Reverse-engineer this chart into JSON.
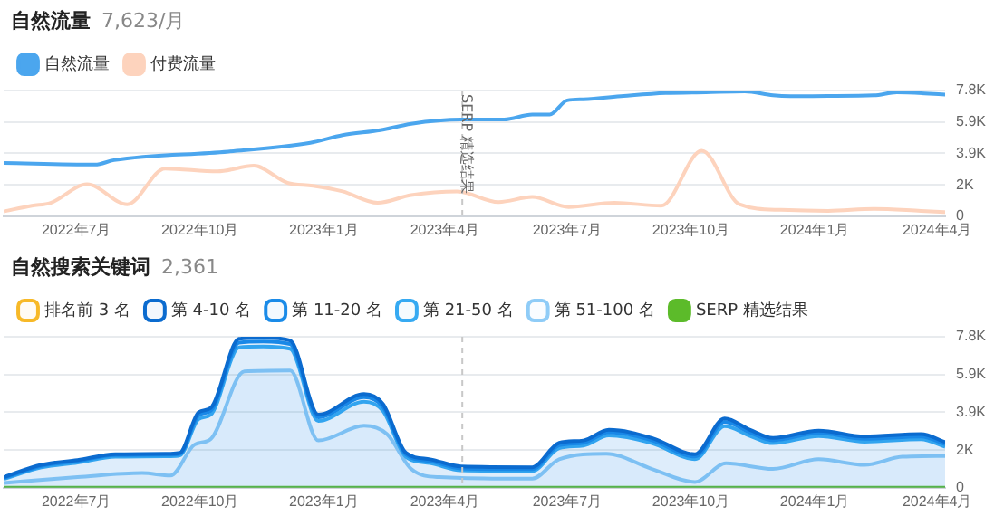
{
  "chart_data": [
    {
      "type": "line",
      "title": "自然流量",
      "subtitle": "7,623/月",
      "legend": "top left",
      "grid": "y",
      "marker": "none",
      "xlim": [
        "2022-05-08",
        "2024-04-07"
      ],
      "xticks": [
        {
          "value": "2022-07-01",
          "label": "2022年7月"
        },
        {
          "value": "2022-10-01",
          "label": "2022年10月"
        },
        {
          "value": "2023-01-01",
          "label": "2023年1月"
        },
        {
          "value": "2023-04-01",
          "label": "2023年4月"
        },
        {
          "value": "2023-07-01",
          "label": "2023年7月"
        },
        {
          "value": "2023-10-01",
          "label": "2023年10月"
        },
        {
          "value": "2024-01-01",
          "label": "2024年1月"
        },
        {
          "value": "2024-04-01",
          "label": "2024年4月"
        }
      ],
      "ylim": [
        0,
        7800
      ],
      "yticks": [
        0,
        {
          "value": 1950,
          "label": "2K"
        },
        {
          "value": 3900,
          "label": "3.9K"
        },
        {
          "value": 5850,
          "label": "5.9K"
        },
        {
          "value": 7800,
          "label": "7.8K"
        }
      ],
      "ref_lines": [
        {
          "axis": "x",
          "value": "2023-04-14",
          "label": "SERP 精选结果",
          "color": "#c8c8c8",
          "line_style": "dashed"
        }
      ],
      "series": [
        {
          "name": "自然流量",
          "color": "#4ba6ee",
          "x": [
            "2022-05-08",
            "2022-07-15",
            "2022-07-29",
            "2022-10-22",
            "2022-12-22",
            "2023-01-15",
            "2023-02-12",
            "2023-03-07",
            "2023-04-13",
            "2023-05-15",
            "2023-06-05",
            "2023-06-18",
            "2023-07-01",
            "2023-07-13",
            "2023-08-12",
            "2023-09-12",
            "2023-10-12",
            "2023-11-10",
            "2023-12-01",
            "2023-12-14",
            "2024-01-11",
            "2024-02-14",
            "2024-03-02",
            "2024-04-07"
          ],
          "values": [
            3300,
            3200,
            3480,
            4010,
            4560,
            5030,
            5340,
            5740,
            6000,
            6000,
            6310,
            6310,
            7190,
            7250,
            7460,
            7640,
            7690,
            7740,
            7500,
            7450,
            7460,
            7500,
            7690,
            7550
          ]
        },
        {
          "name": "付费流量",
          "color": "#fdd3bd",
          "x": [
            "2022-05-08",
            "2022-05-29",
            "2022-06-12",
            "2022-07-09",
            "2022-08-08",
            "2022-09-05",
            "2022-10-14",
            "2022-11-10",
            "2022-12-05",
            "2022-12-24",
            "2023-01-15",
            "2023-02-10",
            "2023-03-07",
            "2023-04-10",
            "2023-05-11",
            "2023-06-05",
            "2023-07-02",
            "2023-08-05",
            "2023-09-09",
            "2023-10-09",
            "2023-11-06",
            "2023-12-07",
            "2024-01-11",
            "2024-02-14",
            "2024-03-20",
            "2024-04-07"
          ],
          "values": [
            300,
            650,
            830,
            1980,
            740,
            2960,
            2780,
            3130,
            2070,
            1890,
            1540,
            830,
            1310,
            1540,
            880,
            1190,
            570,
            830,
            650,
            4060,
            740,
            390,
            330,
            450,
            330,
            260
          ]
        }
      ]
    },
    {
      "type": "area",
      "title": "自然搜索关键词",
      "subtitle": "2,361",
      "legend": "top left",
      "grid": "y",
      "marker": "none",
      "xlim": [
        "2022-05-08",
        "2024-04-07"
      ],
      "xticks": [
        {
          "value": "2022-07-01",
          "label": "2022年7月"
        },
        {
          "value": "2022-10-01",
          "label": "2022年10月"
        },
        {
          "value": "2023-01-01",
          "label": "2023年1月"
        },
        {
          "value": "2023-04-01",
          "label": "2023年4月"
        },
        {
          "value": "2023-07-01",
          "label": "2023年7月"
        },
        {
          "value": "2023-10-01",
          "label": "2023年10月"
        },
        {
          "value": "2024-01-01",
          "label": "2024年1月"
        },
        {
          "value": "2024-04-01",
          "label": "2024年4月"
        }
      ],
      "ylim": [
        0,
        7800
      ],
      "yticks": [
        0,
        {
          "value": 1950,
          "label": "2K"
        },
        {
          "value": 3900,
          "label": "3.9K"
        },
        {
          "value": 5850,
          "label": "5.9K"
        },
        {
          "value": 7800,
          "label": "7.8K"
        }
      ],
      "ref_lines": [
        {
          "axis": "x",
          "value": "2023-04-14",
          "color": "#c8c8c8",
          "line_style": "dashed"
        }
      ],
      "series": [
        {
          "name": "排名前 3 名",
          "color": "#f7b928"
        },
        {
          "name": "第 4-10 名",
          "color": "#0b6bcf",
          "x": [
            "2022-05-08",
            "2022-06-05",
            "2022-07-02",
            "2022-07-30",
            "2022-09-09",
            "2022-09-16",
            "2022-09-30",
            "2022-10-09",
            "2022-10-30",
            "2022-11-17",
            "2022-12-07",
            "2022-12-28",
            "2023-01-31",
            "2023-02-14",
            "2023-03-03",
            "2023-03-21",
            "2023-04-13",
            "2023-06-05",
            "2023-06-25",
            "2023-07-13",
            "2023-08-01",
            "2023-09-02",
            "2023-10-04",
            "2023-10-26",
            "2023-11-14",
            "2023-12-01",
            "2024-01-04",
            "2024-02-07",
            "2024-03-20",
            "2024-04-07"
          ],
          "values": [
            550,
            1180,
            1430,
            1730,
            1760,
            1800,
            3900,
            4120,
            7690,
            7750,
            7610,
            3780,
            4840,
            4330,
            1810,
            1470,
            1100,
            1060,
            2320,
            2440,
            2990,
            2570,
            1730,
            3580,
            2990,
            2570,
            2950,
            2650,
            2770,
            2360
          ]
        },
        {
          "name": "第 11-20 名",
          "color": "#1a8be8",
          "x": [
            "2022-05-08",
            "2022-06-05",
            "2022-07-02",
            "2022-07-30",
            "2022-09-09",
            "2022-09-16",
            "2022-09-30",
            "2022-10-09",
            "2022-10-30",
            "2022-11-17",
            "2022-12-07",
            "2022-12-28",
            "2023-01-31",
            "2023-02-14",
            "2023-03-03",
            "2023-03-21",
            "2023-04-13",
            "2023-06-05",
            "2023-06-25",
            "2023-07-13",
            "2023-08-01",
            "2023-09-02",
            "2023-10-04",
            "2023-10-26",
            "2023-11-14",
            "2023-12-01",
            "2024-01-04",
            "2024-02-07",
            "2024-03-20",
            "2024-04-07"
          ],
          "values": [
            500,
            1120,
            1380,
            1680,
            1710,
            1750,
            3750,
            3980,
            7500,
            7560,
            7420,
            3640,
            4680,
            4180,
            1720,
            1380,
            1000,
            960,
            2200,
            2320,
            2870,
            2450,
            1610,
            3400,
            2850,
            2450,
            2830,
            2530,
            2650,
            2250
          ]
        },
        {
          "name": "第 21-50 名",
          "color": "#36aaf2",
          "x": [
            "2022-05-08",
            "2022-06-05",
            "2022-07-02",
            "2022-07-30",
            "2022-09-09",
            "2022-09-16",
            "2022-09-30",
            "2022-10-09",
            "2022-10-30",
            "2022-11-17",
            "2022-12-07",
            "2022-12-28",
            "2023-01-31",
            "2023-02-14",
            "2023-03-03",
            "2023-03-21",
            "2023-04-13",
            "2023-06-05",
            "2023-06-25",
            "2023-07-13",
            "2023-08-01",
            "2023-09-02",
            "2023-10-04",
            "2023-10-26",
            "2023-11-14",
            "2023-12-01",
            "2024-01-04",
            "2024-02-07",
            "2024-03-20",
            "2024-04-07"
          ],
          "values": [
            450,
            1050,
            1300,
            1600,
            1630,
            1670,
            3550,
            3780,
            7250,
            7300,
            7180,
            3450,
            4450,
            3980,
            1600,
            1270,
            900,
            860,
            2050,
            2180,
            2700,
            2300,
            1480,
            3180,
            2680,
            2300,
            2670,
            2380,
            2500,
            2120
          ]
        },
        {
          "name": "第 51-100 名",
          "color": "#8fccf7",
          "x": [
            "2022-05-08",
            "2022-07-02",
            "2022-08-19",
            "2022-09-09",
            "2022-09-27",
            "2022-10-09",
            "2022-11-03",
            "2022-12-07",
            "2022-12-28",
            "2023-01-31",
            "2023-02-17",
            "2023-03-07",
            "2023-03-28",
            "2023-06-05",
            "2023-06-25",
            "2023-07-30",
            "2023-09-02",
            "2023-10-04",
            "2023-10-27",
            "2023-12-01",
            "2024-01-04",
            "2024-02-07",
            "2024-03-06",
            "2024-04-07"
          ],
          "values": [
            250,
            550,
            760,
            630,
            2230,
            2520,
            6010,
            6060,
            2440,
            3200,
            2770,
            970,
            550,
            470,
            1470,
            1760,
            970,
            300,
            1260,
            970,
            1470,
            1180,
            1600,
            1640
          ]
        },
        {
          "name": "SERP 精选结果",
          "type": "line",
          "color": "#5cbb2a",
          "x": [
            "2022-05-08",
            "2024-04-07"
          ],
          "values": [
            0,
            0
          ]
        }
      ]
    }
  ]
}
